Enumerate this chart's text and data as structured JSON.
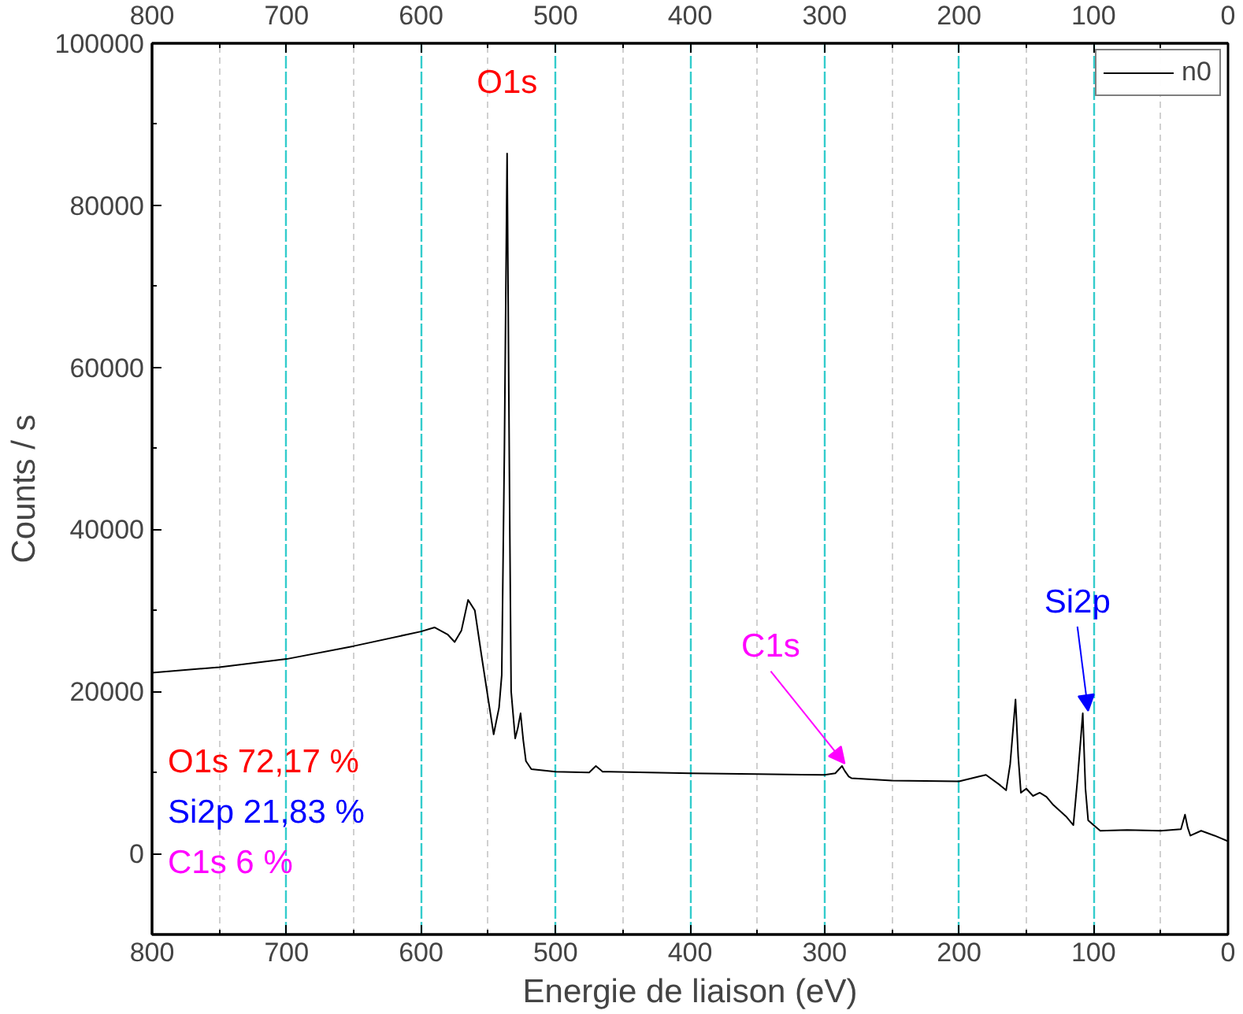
{
  "chart_data": {
    "type": "line",
    "xlabel": "Energie de liaison (eV)",
    "ylabel": "Counts / s",
    "xlim": [
      800,
      0
    ],
    "xticks": [
      800,
      700,
      600,
      500,
      400,
      300,
      200,
      100,
      0
    ],
    "x2lim": [
      800,
      0
    ],
    "x2ticks": [
      800,
      700,
      600,
      500,
      400,
      300,
      200,
      100,
      0
    ],
    "ylim": [
      -10000,
      100000
    ],
    "yticks": [
      0,
      20000,
      40000,
      60000,
      80000,
      100000
    ],
    "grid": "x",
    "legend": "top right",
    "marker": "none",
    "line_style": "solid",
    "series": [
      {
        "name": "n0",
        "color": "#000000",
        "x": [
          800,
          750,
          700,
          650,
          600,
          590,
          580,
          575,
          570,
          565,
          560,
          555,
          550,
          546,
          542,
          540,
          538,
          536,
          534,
          533,
          530,
          528,
          526,
          524,
          522,
          518,
          500,
          475,
          470,
          465,
          460,
          400,
          350,
          300,
          292,
          287,
          285,
          282,
          280,
          250,
          200,
          185,
          180,
          170,
          165,
          162,
          158,
          156,
          154,
          150,
          145,
          140,
          135,
          130,
          120,
          115,
          112,
          108,
          106,
          104,
          100,
          95,
          75,
          50,
          35,
          32,
          30,
          28,
          20,
          10,
          0
        ],
        "values": [
          22300,
          23000,
          24000,
          25600,
          27400,
          27900,
          27000,
          26100,
          27500,
          31300,
          30000,
          24400,
          19000,
          14700,
          18000,
          22000,
          50000,
          86400,
          40000,
          20000,
          14200,
          15500,
          17300,
          14000,
          11400,
          10400,
          10100,
          10000,
          10800,
          10100,
          10100,
          9900,
          9800,
          9700,
          9900,
          10800,
          10200,
          9500,
          9300,
          9000,
          8900,
          9500,
          9700,
          8500,
          7800,
          11000,
          19000,
          12000,
          7500,
          8000,
          7100,
          7500,
          7000,
          6000,
          4500,
          3500,
          9000,
          17300,
          8000,
          4100,
          3500,
          2800,
          2900,
          2800,
          3000,
          4800,
          3200,
          2200,
          2800,
          2200,
          1500
        ]
      }
    ],
    "annotations": [
      {
        "text": "O1s",
        "x": 536,
        "y": 86400
      },
      {
        "text": "Si2p",
        "x": 104,
        "y": 17300
      },
      {
        "text": "C1s",
        "x": 285,
        "y": 10800
      },
      "O1s  72,17 %",
      "Si2p  21,83 %",
      "C1s   6 %"
    ]
  }
}
